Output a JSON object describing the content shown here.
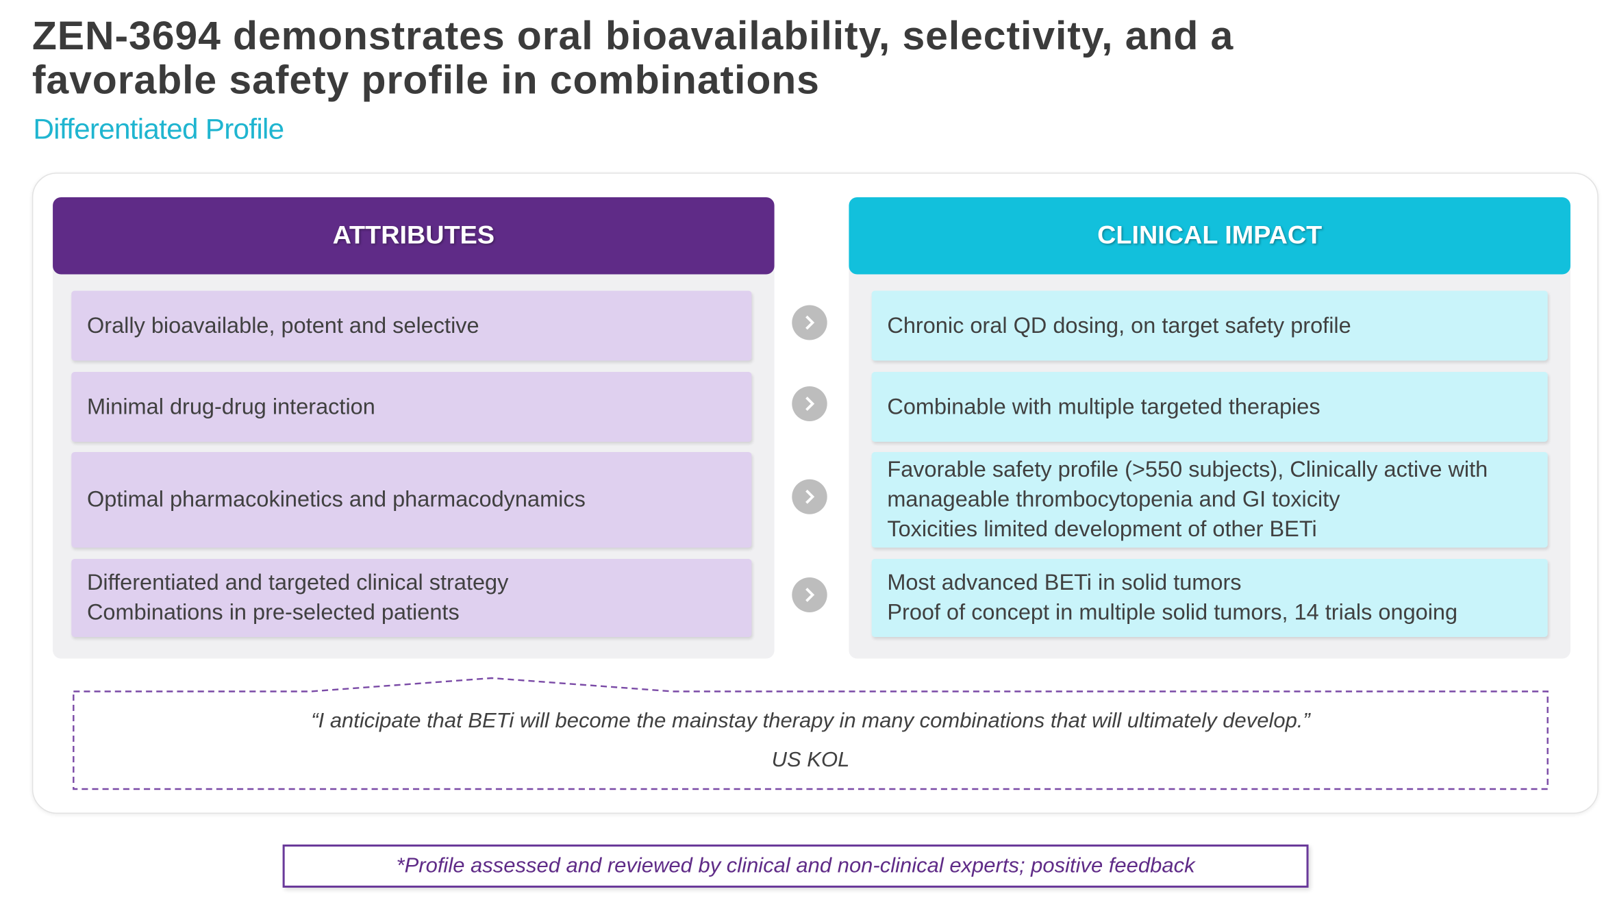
{
  "header": {
    "title": [
      "ZEN-3694 demonstrates oral bioavailability, selectivity, and a",
      "favorable safety profile in combinations"
    ],
    "subtitle": "Differentiated Profile"
  },
  "attributes": {
    "heading": "ATTRIBUTES",
    "items": [
      [
        "Orally bioavailable, potent and selective"
      ],
      [
        "Minimal drug-drug interaction"
      ],
      [
        "Optimal pharmacokinetics and pharmacodynamics"
      ],
      [
        "Differentiated and targeted clinical strategy",
        "Combinations in pre-selected patients"
      ]
    ]
  },
  "clinical_impact": {
    "heading": "CLINICAL IMPACT",
    "items": [
      [
        "Chronic oral QD dosing, on target safety profile"
      ],
      [
        "Combinable with multiple targeted therapies"
      ],
      [
        "Favorable safety profile (>550 subjects), Clinically active with",
        "manageable thrombocytopenia and GI toxicity",
        "Toxicities limited development of other BETi"
      ],
      [
        "Most advanced BETi in solid tumors",
        "Proof of concept in multiple solid tumors, 14 trials ongoing"
      ]
    ]
  },
  "quote": {
    "text": "“I anticipate that BETi will become the mainstay therapy in many combinations that will ultimately develop.”",
    "source": "US KOL"
  },
  "footnote": "*Profile assessed and reviewed by clinical and non-clinical experts; positive feedback"
}
